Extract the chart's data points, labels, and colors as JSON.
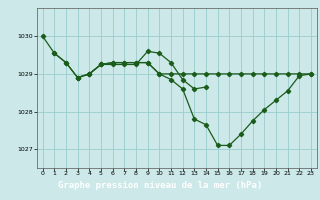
{
  "background_color": "#cce8e8",
  "plot_bg_color": "#cce8e8",
  "grid_color": "#99cccc",
  "line_color": "#1a5c1a",
  "title": "Graphe pression niveau de la mer (hPa)",
  "title_fontsize": 6.5,
  "title_bg": "#3a7a3a",
  "title_fg": "#ffffff",
  "xlim": [
    -0.5,
    23.5
  ],
  "ylim": [
    1026.5,
    1030.75
  ],
  "yticks": [
    1027,
    1028,
    1029,
    1030
  ],
  "xticks": [
    0,
    1,
    2,
    3,
    4,
    5,
    6,
    7,
    8,
    9,
    10,
    11,
    12,
    13,
    14,
    15,
    16,
    17,
    18,
    19,
    20,
    21,
    22,
    23
  ],
  "s1_x": [
    0,
    1,
    2,
    3,
    4,
    5,
    6,
    7,
    8,
    9,
    10,
    11,
    12,
    13,
    14
  ],
  "s1_y": [
    1030.0,
    1029.55,
    1029.3,
    1028.9,
    1029.0,
    1029.25,
    1029.25,
    1029.25,
    1029.25,
    1029.6,
    1029.55,
    1029.3,
    1028.85,
    1028.6,
    1028.65
  ],
  "s2_x": [
    1,
    2,
    3,
    4,
    5,
    6,
    7,
    8,
    9,
    10,
    11,
    12,
    13,
    14,
    15,
    16,
    17,
    18,
    19,
    20,
    21,
    22,
    23
  ],
  "s2_y": [
    1029.55,
    1029.3,
    1028.9,
    1029.0,
    1029.25,
    1029.3,
    1029.3,
    1029.3,
    1029.3,
    1029.0,
    1028.85,
    1028.6,
    1027.8,
    1027.65,
    1027.1,
    1027.1,
    1027.4,
    1027.75,
    1028.05,
    1028.3,
    1028.55,
    1028.95,
    1029.0
  ],
  "s3_x": [
    3,
    4,
    5,
    6,
    7,
    8,
    9,
    10,
    11,
    12,
    13,
    14,
    15,
    16,
    17,
    18,
    19,
    20,
    21,
    22,
    23
  ],
  "s3_y": [
    1028.9,
    1029.0,
    1029.25,
    1029.3,
    1029.3,
    1029.3,
    1029.3,
    1029.0,
    1029.0,
    1029.0,
    1029.0,
    1029.0,
    1029.0,
    1029.0,
    1029.0,
    1029.0,
    1029.0,
    1029.0,
    1029.0,
    1029.0,
    1029.0
  ]
}
